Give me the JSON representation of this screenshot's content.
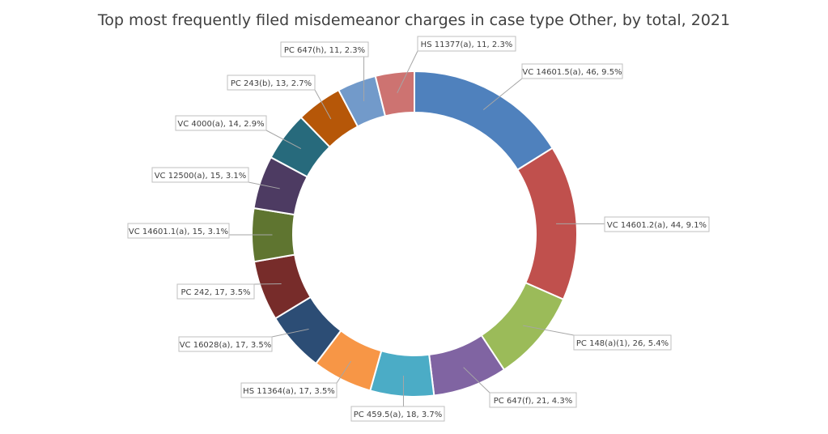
{
  "chart_data": {
    "type": "pie",
    "variant": "doughnut",
    "title": "Top most frequently  filed misdemeanor charges in case type Other, by total, 2021",
    "start_angle_deg": 0,
    "direction": "clockwise",
    "slices": [
      {
        "label": "VC  14601.5(a), 46, 9.5%",
        "value": 46,
        "color": "#4F81BD"
      },
      {
        "label": "VC  14601.2(a), 44, 9.1%",
        "value": 44,
        "color": "#C0504D"
      },
      {
        "label": "PC  148(a)(1), 26, 5.4%",
        "value": 26,
        "color": "#9BBB59"
      },
      {
        "label": "PC  647(f), 21, 4.3%",
        "value": 21,
        "color": "#8064A2"
      },
      {
        "label": "PC  459.5(a), 18, 3.7%",
        "value": 18,
        "color": "#4BACC6"
      },
      {
        "label": "HS  11364(a), 17, 3.5%",
        "value": 17,
        "color": "#F79646"
      },
      {
        "label": "VC  16028(a), 17, 3.5%",
        "value": 17,
        "color": "#2C4D75"
      },
      {
        "label": "PC  242, 17, 3.5%",
        "value": 17,
        "color": "#772C2A"
      },
      {
        "label": "VC  14601.1(a), 15, 3.1%",
        "value": 15,
        "color": "#5F7530"
      },
      {
        "label": "VC  12500(a), 15, 3.1%",
        "value": 15,
        "color": "#4D3B62"
      },
      {
        "label": "VC  4000(a), 14, 2.9%",
        "value": 14,
        "color": "#276A7C"
      },
      {
        "label": "PC  243(b), 13, 2.7%",
        "value": 13,
        "color": "#B65708"
      },
      {
        "label": "PC  647(h), 11, 2.3%",
        "value": 11,
        "color": "#729ACA"
      },
      {
        "label": "HS  11377(a), 11, 2.3%",
        "value": 11,
        "color": "#CD7371"
      }
    ]
  }
}
